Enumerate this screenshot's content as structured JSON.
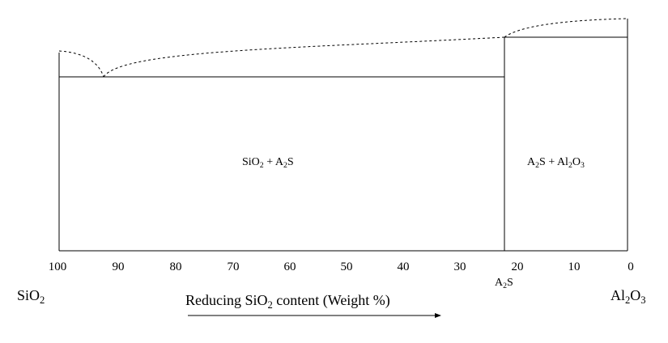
{
  "diagram": {
    "type": "binary phase diagram",
    "components": {
      "left": {
        "main": "SiO",
        "sub": "2"
      },
      "right": {
        "main": "Al",
        "sub1": "2",
        "mid": "O",
        "sub2": "3"
      }
    },
    "x_axis": {
      "ticks": [
        "100",
        "90",
        "80",
        "70",
        "60",
        "50",
        "40",
        "30",
        "20",
        "10",
        "0"
      ],
      "label": {
        "pre": "Reducing SiO",
        "sub": "2",
        "post": " content (Weight %)"
      }
    },
    "compound_marker": {
      "main": "A",
      "sub": "2",
      "post": "S",
      "sio2_wt_pct": 22
    },
    "regions": [
      {
        "id": "sio2-a2s",
        "label": {
          "a": "SiO",
          "a_sub": "2",
          "mid": " + A",
          "mid_sub": "2",
          "post": "S"
        }
      },
      {
        "id": "a2s-al2o3",
        "label": {
          "a": "A",
          "a_sub": "2",
          "mid": "S + Al",
          "mid_sub": "2",
          "mid2": "O",
          "mid2_sub": "3"
        }
      }
    ],
    "features": {
      "eutectic_sio2_wt_pct": 92,
      "second_eutectic_sio2_wt_pct": 22
    }
  }
}
